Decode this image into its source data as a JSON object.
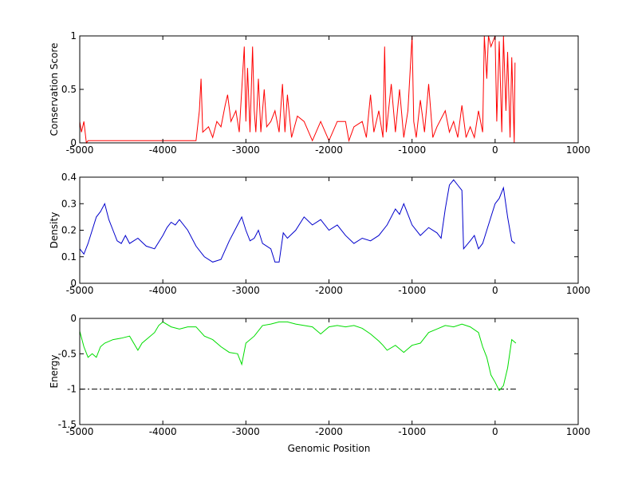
{
  "chart_data": [
    {
      "type": "line",
      "ylabel": "Conservation Score",
      "color": "#ff0000",
      "xlim": [
        -5000,
        1000
      ],
      "xticks": [
        -5000,
        -4000,
        -3000,
        -2000,
        -1000,
        0,
        1000
      ],
      "ylim": [
        0,
        1
      ],
      "yticks": [
        0,
        0.5,
        1
      ],
      "grid": false,
      "x": [
        -5000,
        -4980,
        -4950,
        -4920,
        -4900,
        -3600,
        -3560,
        -3540,
        -3520,
        -3450,
        -3400,
        -3350,
        -3300,
        -3250,
        -3220,
        -3180,
        -3120,
        -3080,
        -3020,
        -3000,
        -2980,
        -2950,
        -2920,
        -2900,
        -2880,
        -2850,
        -2820,
        -2780,
        -2750,
        -2700,
        -2650,
        -2600,
        -2560,
        -2530,
        -2500,
        -2450,
        -2380,
        -2300,
        -2200,
        -2100,
        -2000,
        -1900,
        -1800,
        -1760,
        -1700,
        -1600,
        -1550,
        -1500,
        -1460,
        -1400,
        -1350,
        -1330,
        -1310,
        -1250,
        -1200,
        -1150,
        -1100,
        -1050,
        -1000,
        -980,
        -950,
        -900,
        -850,
        -800,
        -750,
        -700,
        -600,
        -550,
        -500,
        -450,
        -400,
        -350,
        -300,
        -250,
        -200,
        -150,
        -130,
        -100,
        -80,
        -50,
        0,
        20,
        50,
        80,
        100,
        130,
        150,
        180,
        200,
        230,
        240
      ],
      "values": [
        0.2,
        0.1,
        0.2,
        0,
        0.02,
        0.02,
        0.3,
        0.6,
        0.1,
        0.15,
        0.05,
        0.2,
        0.15,
        0.35,
        0.45,
        0.2,
        0.3,
        0.1,
        0.9,
        0.2,
        0.7,
        0.1,
        0.9,
        0.3,
        0.1,
        0.6,
        0.1,
        0.5,
        0.15,
        0.2,
        0.3,
        0.1,
        0.55,
        0.1,
        0.45,
        0.05,
        0.25,
        0.2,
        0.02,
        0.2,
        0.02,
        0.2,
        0.2,
        0.02,
        0.15,
        0.2,
        0.05,
        0.45,
        0.1,
        0.3,
        0.05,
        0.9,
        0.1,
        0.55,
        0.1,
        0.5,
        0.05,
        0.3,
        1,
        0.2,
        0.05,
        0.4,
        0.1,
        0.55,
        0.05,
        0.15,
        0.3,
        0.1,
        0.2,
        0.05,
        0.35,
        0.05,
        0.15,
        0.05,
        0.3,
        0.1,
        1,
        0.6,
        1,
        0.9,
        1,
        0.2,
        0.95,
        0.1,
        1,
        0.3,
        0.85,
        0.05,
        0.8,
        0,
        0.75
      ]
    },
    {
      "type": "line",
      "ylabel": "Density",
      "color": "#0000cc",
      "xlim": [
        -5000,
        1000
      ],
      "xticks": [
        -5000,
        -4000,
        -3000,
        -2000,
        -1000,
        0,
        1000
      ],
      "ylim": [
        0,
        0.4
      ],
      "yticks": [
        0,
        0.1,
        0.2,
        0.3,
        0.4
      ],
      "grid": false,
      "x": [
        -5000,
        -4950,
        -4900,
        -4850,
        -4800,
        -4750,
        -4700,
        -4650,
        -4600,
        -4550,
        -4500,
        -4450,
        -4400,
        -4300,
        -4200,
        -4100,
        -4000,
        -3950,
        -3900,
        -3850,
        -3800,
        -3700,
        -3600,
        -3500,
        -3400,
        -3300,
        -3200,
        -3100,
        -3050,
        -3000,
        -2950,
        -2900,
        -2850,
        -2800,
        -2700,
        -2650,
        -2600,
        -2550,
        -2500,
        -2400,
        -2300,
        -2200,
        -2100,
        -2000,
        -1900,
        -1800,
        -1700,
        -1600,
        -1500,
        -1400,
        -1300,
        -1200,
        -1150,
        -1100,
        -1050,
        -1000,
        -900,
        -800,
        -700,
        -650,
        -600,
        -550,
        -500,
        -450,
        -400,
        -380,
        -300,
        -250,
        -200,
        -150,
        -100,
        -50,
        0,
        50,
        100,
        150,
        200,
        240
      ],
      "values": [
        0.13,
        0.11,
        0.15,
        0.2,
        0.25,
        0.27,
        0.3,
        0.24,
        0.2,
        0.16,
        0.15,
        0.18,
        0.15,
        0.17,
        0.14,
        0.13,
        0.18,
        0.21,
        0.23,
        0.22,
        0.24,
        0.2,
        0.14,
        0.1,
        0.08,
        0.09,
        0.16,
        0.22,
        0.25,
        0.2,
        0.16,
        0.17,
        0.2,
        0.15,
        0.13,
        0.08,
        0.08,
        0.19,
        0.17,
        0.2,
        0.25,
        0.22,
        0.24,
        0.2,
        0.22,
        0.18,
        0.15,
        0.17,
        0.16,
        0.18,
        0.22,
        0.28,
        0.26,
        0.3,
        0.26,
        0.22,
        0.18,
        0.21,
        0.19,
        0.17,
        0.28,
        0.37,
        0.39,
        0.37,
        0.35,
        0.13,
        0.16,
        0.18,
        0.13,
        0.15,
        0.2,
        0.25,
        0.3,
        0.32,
        0.36,
        0.25,
        0.16,
        0.15
      ]
    },
    {
      "type": "line",
      "ylabel": "Energy",
      "xlabel": "Genomic Position",
      "color": "#00dd00",
      "xlim": [
        -5000,
        1000
      ],
      "xticks": [
        -5000,
        -4000,
        -3000,
        -2000,
        -1000,
        0,
        1000
      ],
      "ylim": [
        -1.5,
        0
      ],
      "yticks": [
        -1.5,
        -1,
        -0.5,
        0
      ],
      "grid": false,
      "x": [
        -5000,
        -4950,
        -4900,
        -4850,
        -4800,
        -4750,
        -4700,
        -4600,
        -4500,
        -4400,
        -4300,
        -4250,
        -4100,
        -4050,
        -4000,
        -3900,
        -3800,
        -3700,
        -3600,
        -3500,
        -3400,
        -3300,
        -3200,
        -3100,
        -3050,
        -3000,
        -2900,
        -2800,
        -2700,
        -2600,
        -2500,
        -2400,
        -2300,
        -2200,
        -2100,
        -2000,
        -1900,
        -1800,
        -1700,
        -1600,
        -1500,
        -1400,
        -1350,
        -1300,
        -1200,
        -1100,
        -1000,
        -900,
        -800,
        -700,
        -600,
        -500,
        -400,
        -300,
        -200,
        -150,
        -100,
        -50,
        0,
        50,
        100,
        150,
        200,
        250
      ],
      "values": [
        -0.18,
        -0.4,
        -0.55,
        -0.5,
        -0.55,
        -0.4,
        -0.35,
        -0.3,
        -0.28,
        -0.25,
        -0.45,
        -0.35,
        -0.2,
        -0.1,
        -0.05,
        -0.12,
        -0.15,
        -0.12,
        -0.12,
        -0.25,
        -0.3,
        -0.4,
        -0.48,
        -0.5,
        -0.65,
        -0.35,
        -0.25,
        -0.1,
        -0.08,
        -0.05,
        -0.05,
        -0.08,
        -0.1,
        -0.12,
        -0.22,
        -0.12,
        -0.1,
        -0.12,
        -0.1,
        -0.14,
        -0.22,
        -0.32,
        -0.38,
        -0.45,
        -0.38,
        -0.48,
        -0.38,
        -0.35,
        -0.2,
        -0.15,
        -0.1,
        -0.12,
        -0.08,
        -0.12,
        -0.2,
        -0.4,
        -0.55,
        -0.8,
        -0.9,
        -1.02,
        -0.95,
        -0.7,
        -0.3,
        -0.35
      ],
      "reference_line": {
        "x": [
          -5000,
          250
        ],
        "values": [
          -1,
          -1
        ],
        "color": "#000000",
        "dash": "dashdot"
      }
    }
  ]
}
